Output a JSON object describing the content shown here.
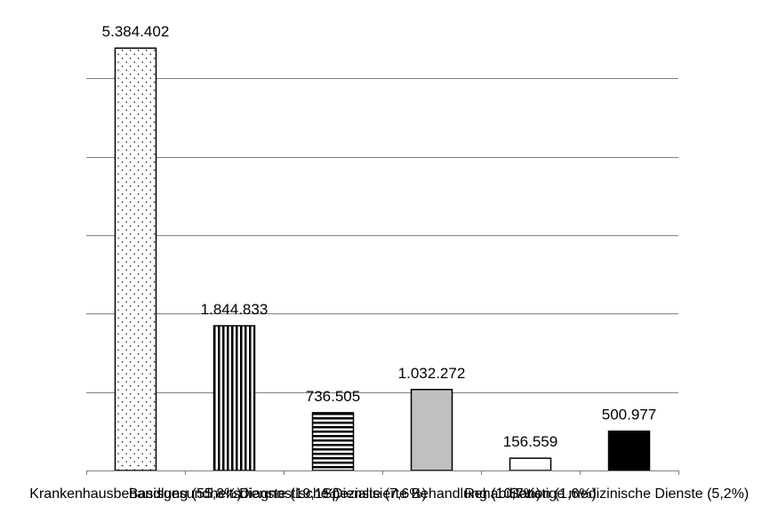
{
  "chart_data": {
    "type": "bar",
    "categories": [
      "Krankenhausbehandlung (55,8%)",
      "Basisgesundheitsdienste (19,1%)",
      "Diagnostische Dienste (7,6%)",
      "Spezialisierte Behandlung (10,7%)",
      "Rehabilitation (1,6%)",
      "Sonstige medizinische Dienste (5,2%)"
    ],
    "values": [
      5384402,
      1844833,
      736505,
      1032272,
      156559,
      500977
    ],
    "value_labels": [
      "5.384.402",
      "1.844.833",
      "736.505",
      "1.032.272",
      "156.559",
      "500.977"
    ],
    "bar_styles": [
      "dots",
      "vertical-stripes",
      "horizontal-stripes",
      "gray",
      "white",
      "black"
    ],
    "ylim": [
      0,
      5500000
    ],
    "ytick_step": 1000000,
    "grid": true,
    "legend": "none",
    "title": "",
    "xlabel": "",
    "ylabel": "",
    "colors": {
      "gray": "#c0c0c0",
      "black": "#000000",
      "white": "#ffffff",
      "grid": "#808080"
    }
  }
}
